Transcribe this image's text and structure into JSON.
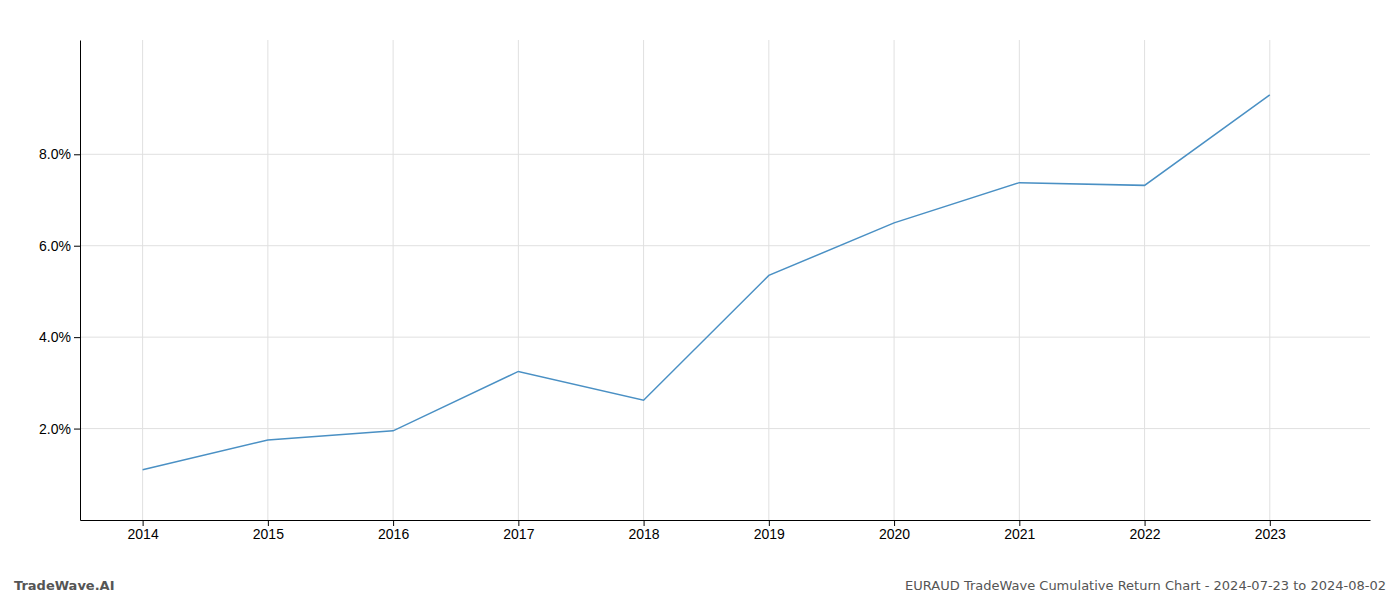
{
  "chart_data": {
    "type": "line",
    "x": [
      2014,
      2015,
      2016,
      2017,
      2018,
      2019,
      2020,
      2021,
      2022,
      2023
    ],
    "values": [
      1.1,
      1.75,
      1.95,
      3.25,
      2.62,
      5.35,
      6.5,
      7.38,
      7.32,
      9.3
    ],
    "color": "#4a90c4",
    "xlim": [
      2013.5,
      2023.8
    ],
    "ylim": [
      0.0,
      10.5
    ],
    "xticks": [
      2014,
      2015,
      2016,
      2017,
      2018,
      2019,
      2020,
      2021,
      2022,
      2023
    ],
    "yticks": [
      {
        "value": 2.0,
        "label": "2.0%"
      },
      {
        "value": 4.0,
        "label": "4.0%"
      },
      {
        "value": 6.0,
        "label": "6.0%"
      },
      {
        "value": 8.0,
        "label": "8.0%"
      }
    ],
    "grid": true,
    "annotations": [
      "TradeWave.AI",
      "EURAUD TradeWave Cumulative Return Chart - 2024-07-23 to 2024-08-02"
    ]
  }
}
